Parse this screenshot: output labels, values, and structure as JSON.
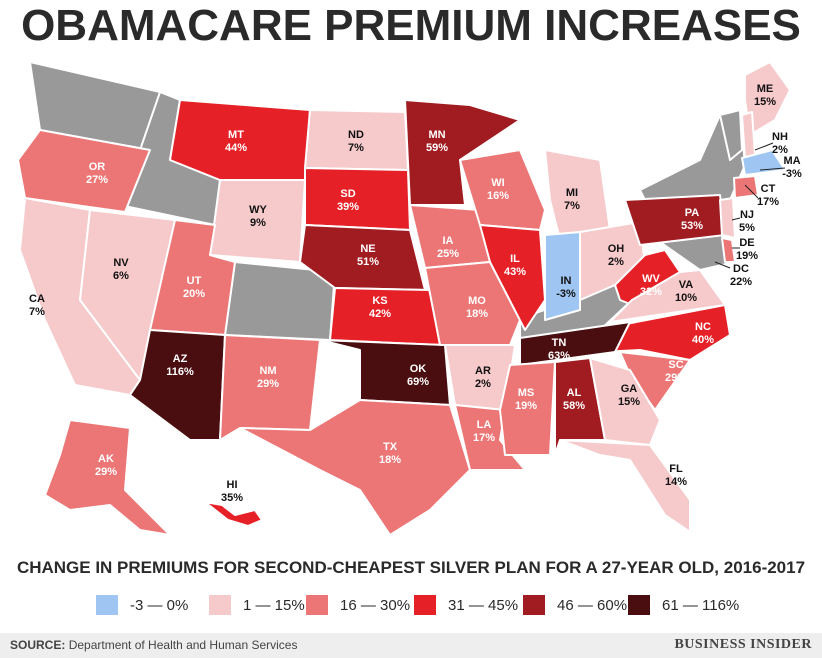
{
  "title": "OBAMACARE PREMIUM INCREASES",
  "subtitle": "CHANGE IN PREMIUMS FOR SECOND-CHEAPEST SILVER PLAN FOR A 27-YEAR OLD, 2016-2017",
  "legend": [
    {
      "label": "-3 — 0%",
      "color": "#9fc6f3"
    },
    {
      "label": "1 — 15%",
      "color": "#f6c9cb"
    },
    {
      "label": "16 — 30%",
      "color": "#ec7676"
    },
    {
      "label": "31 — 45%",
      "color": "#e52127"
    },
    {
      "label": "46 — 60%",
      "color": "#a01c20"
    },
    {
      "label": "61 — 116%",
      "color": "#4a0e10"
    }
  ],
  "no_data_color": "#999999",
  "states": [
    {
      "abbr": "ME",
      "value": "15%",
      "color": "#f6c9cb"
    },
    {
      "abbr": "NH",
      "value": "2%",
      "color": "#f6c9cb"
    },
    {
      "abbr": "MA",
      "value": "-3%",
      "color": "#9fc6f3"
    },
    {
      "abbr": "CT",
      "value": "17%",
      "color": "#ec7676"
    },
    {
      "abbr": "NJ",
      "value": "5%",
      "color": "#f6c9cb"
    },
    {
      "abbr": "DE",
      "value": "19%",
      "color": "#ec7676"
    },
    {
      "abbr": "DC",
      "value": "22%",
      "color": "#ec7676"
    },
    {
      "abbr": "MT",
      "value": "44%",
      "color": "#e52127"
    },
    {
      "abbr": "ND",
      "value": "7%",
      "color": "#f6c9cb"
    },
    {
      "abbr": "MN",
      "value": "59%",
      "color": "#a01c20"
    },
    {
      "abbr": "OR",
      "value": "27%",
      "color": "#ec7676"
    },
    {
      "abbr": "WY",
      "value": "9%",
      "color": "#f6c9cb"
    },
    {
      "abbr": "SD",
      "value": "39%",
      "color": "#e52127"
    },
    {
      "abbr": "WI",
      "value": "16%",
      "color": "#ec7676"
    },
    {
      "abbr": "MI",
      "value": "7%",
      "color": "#f6c9cb"
    },
    {
      "abbr": "PA",
      "value": "53%",
      "color": "#a01c20"
    },
    {
      "abbr": "NV",
      "value": "6%",
      "color": "#f6c9cb"
    },
    {
      "abbr": "NE",
      "value": "51%",
      "color": "#a01c20"
    },
    {
      "abbr": "IA",
      "value": "25%",
      "color": "#ec7676"
    },
    {
      "abbr": "IL",
      "value": "43%",
      "color": "#e52127"
    },
    {
      "abbr": "IN",
      "value": "-3%",
      "color": "#9fc6f3"
    },
    {
      "abbr": "OH",
      "value": "2%",
      "color": "#f6c9cb"
    },
    {
      "abbr": "UT",
      "value": "20%",
      "color": "#ec7676"
    },
    {
      "abbr": "CA",
      "value": "7%",
      "color": "#f6c9cb"
    },
    {
      "abbr": "KS",
      "value": "42%",
      "color": "#e52127"
    },
    {
      "abbr": "MO",
      "value": "18%",
      "color": "#ec7676"
    },
    {
      "abbr": "WV",
      "value": "32%",
      "color": "#e52127"
    },
    {
      "abbr": "VA",
      "value": "10%",
      "color": "#f6c9cb"
    },
    {
      "abbr": "NC",
      "value": "40%",
      "color": "#e52127"
    },
    {
      "abbr": "AZ",
      "value": "116%",
      "color": "#4a0e10"
    },
    {
      "abbr": "NM",
      "value": "29%",
      "color": "#ec7676"
    },
    {
      "abbr": "OK",
      "value": "69%",
      "color": "#4a0e10"
    },
    {
      "abbr": "AR",
      "value": "2%",
      "color": "#f6c9cb"
    },
    {
      "abbr": "TN",
      "value": "63%",
      "color": "#4a0e10"
    },
    {
      "abbr": "SC",
      "value": "29%",
      "color": "#ec7676"
    },
    {
      "abbr": "MS",
      "value": "19%",
      "color": "#ec7676"
    },
    {
      "abbr": "AL",
      "value": "58%",
      "color": "#a01c20"
    },
    {
      "abbr": "GA",
      "value": "15%",
      "color": "#f6c9cb"
    },
    {
      "abbr": "LA",
      "value": "17%",
      "color": "#ec7676"
    },
    {
      "abbr": "TX",
      "value": "18%",
      "color": "#ec7676"
    },
    {
      "abbr": "FL",
      "value": "14%",
      "color": "#f6c9cb"
    },
    {
      "abbr": "AK",
      "value": "29%",
      "color": "#ec7676"
    },
    {
      "abbr": "HI",
      "value": "35%",
      "color": "#e52127"
    }
  ],
  "footer": {
    "source_label": "SOURCE:",
    "source_text": "Department of Health and Human Services",
    "brand": "BUSINESS INSIDER"
  }
}
